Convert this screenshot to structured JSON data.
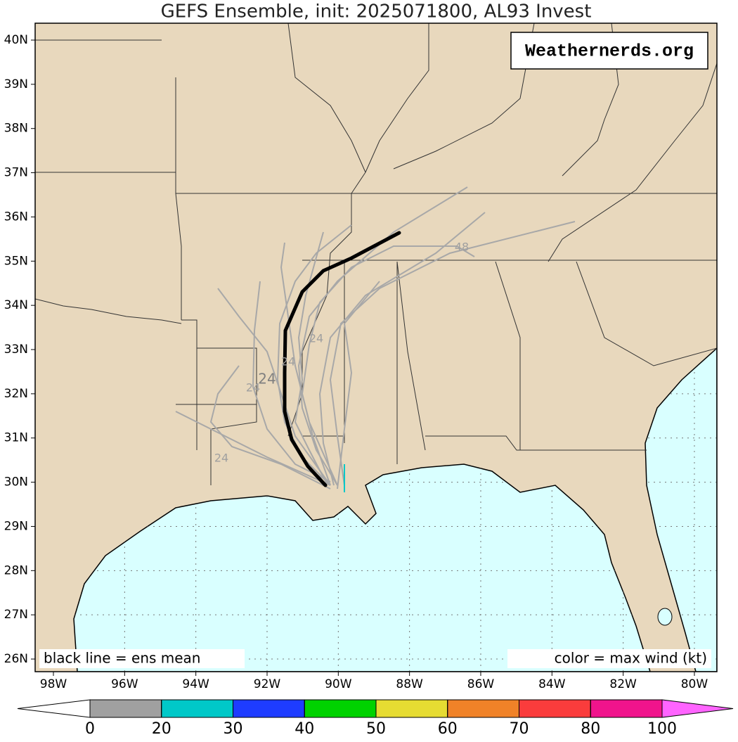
{
  "title": "GEFS Ensemble, init: 2025071800, AL93 Invest",
  "watermark": "Weathernerds.org",
  "legend_left": "black line = ens mean",
  "legend_right": "color = max wind (kt)",
  "lat_labels": [
    "40N",
    "39N",
    "38N",
    "37N",
    "36N",
    "35N",
    "34N",
    "33N",
    "32N",
    "31N",
    "30N",
    "29N",
    "28N",
    "27N",
    "26N"
  ],
  "lon_labels": [
    "98W",
    "96W",
    "94W",
    "92W",
    "90W",
    "88W",
    "86W",
    "84W",
    "82W",
    "80W"
  ],
  "track_labels": [
    "24",
    "24",
    "24",
    "24",
    "24",
    "48"
  ],
  "colorbar": {
    "ticks": [
      0,
      20,
      30,
      40,
      50,
      60,
      70,
      80,
      100
    ],
    "segment_colors": [
      "#a0a0a0",
      "#00c8c8",
      "#1e3cff",
      "#00d200",
      "#e6dc32",
      "#f08228",
      "#fa3c3c",
      "#f0148c"
    ],
    "under_color": "#ffffff",
    "over_color": "#ff64ff"
  }
}
